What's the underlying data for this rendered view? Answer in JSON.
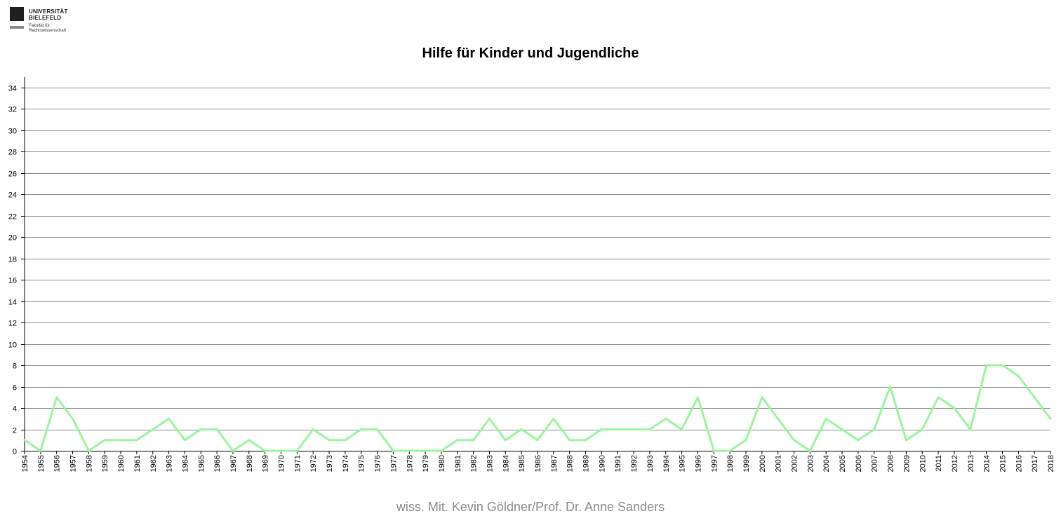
{
  "logo": {
    "name_line1": "UNIVERSITÄT",
    "name_line2": "BIELEFELD",
    "faculty_line1": "Fakultät für",
    "faculty_line2": "Rechtswissenschaft"
  },
  "footer": "wiss. Mit. Kevin Göldner/Prof.  Dr. Anne Sanders",
  "colors": {
    "series": "#9cf59c",
    "grid": "#8c8c8c",
    "axis": "#000000"
  },
  "chart_data": {
    "type": "line",
    "title": "Hilfe für Kinder und Jugendliche",
    "xlabel": "",
    "ylabel": "",
    "ylim": [
      0,
      34
    ],
    "yticks": [
      0,
      2,
      4,
      6,
      8,
      10,
      12,
      14,
      16,
      18,
      20,
      22,
      24,
      26,
      28,
      30,
      32,
      34
    ],
    "grid": true,
    "legend": "none",
    "categories": [
      "1954",
      "1955",
      "1956",
      "1957",
      "1958",
      "1959",
      "1960",
      "1961",
      "1962",
      "1963",
      "1964",
      "1965",
      "1966",
      "1967",
      "1968",
      "1969",
      "1970",
      "1971",
      "1972",
      "1973",
      "1974",
      "1975",
      "1976",
      "1977",
      "1978",
      "1979",
      "1980",
      "1981",
      "1982",
      "1983",
      "1984",
      "1985",
      "1986",
      "1987",
      "1988",
      "1989",
      "1990",
      "1991",
      "1992",
      "1993",
      "1994",
      "1995",
      "1996",
      "1997",
      "1998",
      "1999",
      "2000",
      "2001",
      "2002",
      "2003",
      "2004",
      "2005",
      "2006",
      "2007",
      "2008",
      "2009",
      "2010",
      "2011",
      "2012",
      "2013",
      "2014",
      "2015",
      "2016",
      "2017",
      "2018"
    ],
    "series": [
      {
        "values": [
          1,
          0,
          5,
          3,
          0,
          1,
          1,
          1,
          2,
          3,
          1,
          2,
          2,
          0,
          1,
          0,
          0,
          0,
          2,
          1,
          1,
          2,
          2,
          0,
          0,
          0,
          0,
          1,
          1,
          3,
          1,
          2,
          1,
          3,
          1,
          1,
          2,
          2,
          2,
          2,
          3,
          2,
          5,
          0,
          0,
          1,
          5,
          3,
          1,
          0,
          3,
          2,
          1,
          2,
          6,
          1,
          2,
          5,
          4,
          2,
          8,
          8,
          7,
          5,
          3
        ]
      }
    ]
  }
}
